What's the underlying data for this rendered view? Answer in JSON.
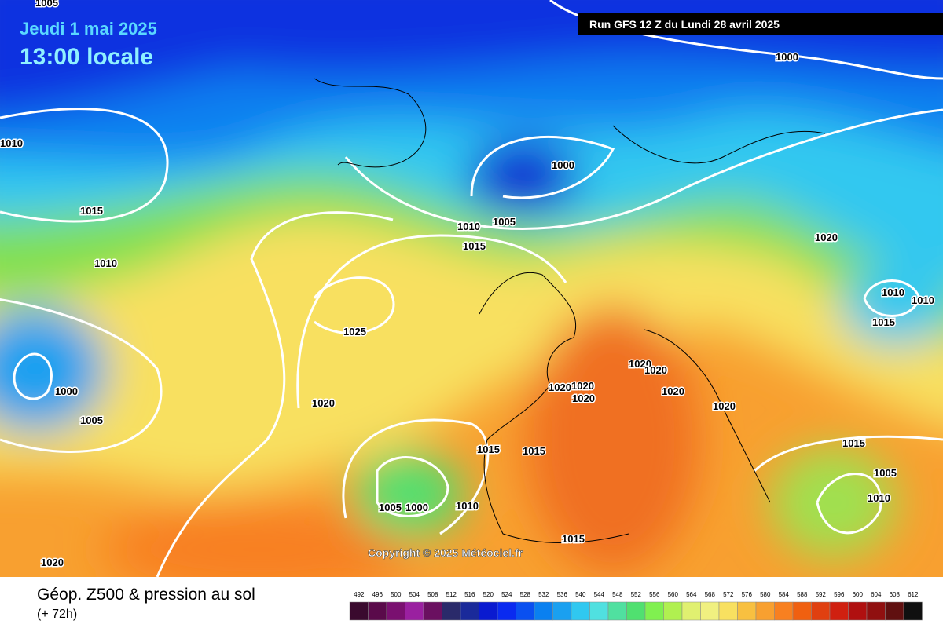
{
  "header": {
    "date": "Jeudi 1 mai 2025",
    "time": "13:00 locale",
    "run": "Run GFS 12 Z du Lundi 28 avril 2025"
  },
  "isobar_labels": [
    "1005",
    "1010",
    "1015",
    "1010",
    "1000",
    "1005",
    "1010",
    "1015",
    "1000",
    "1020",
    "1010",
    "1010",
    "1015",
    "1025",
    "1000",
    "1005",
    "1020",
    "1020",
    "1020",
    "1020",
    "1020",
    "1020",
    "1020",
    "1020",
    "1015",
    "1015",
    "1015",
    "1005",
    "1010",
    "1005",
    "1000",
    "1010",
    "1015",
    "1020"
  ],
  "copyright": "Copyright © 2025 Météociel.fr",
  "legend": {
    "title": "Géop. Z500 & pression au sol",
    "subtitle": "(+ 72h)",
    "ticks": [
      492,
      496,
      500,
      504,
      508,
      512,
      516,
      520,
      524,
      528,
      532,
      536,
      540,
      544,
      548,
      552,
      556,
      560,
      564,
      568,
      572,
      576,
      580,
      584,
      588,
      592,
      596,
      600,
      604,
      608,
      612
    ],
    "colors": [
      "#3a0a2e",
      "#5a0a4a",
      "#7a1070",
      "#9a20a0",
      "#6a1060",
      "#2a2a6a",
      "#1a2a9a",
      "#0a1ad0",
      "#0a2af0",
      "#0a50f0",
      "#0a80f0",
      "#1aa0f0",
      "#30c8f0",
      "#50e0e0",
      "#50e0a0",
      "#50e070",
      "#80f050",
      "#b0f050",
      "#e0f070",
      "#f0f080",
      "#f8e060",
      "#f8c040",
      "#f8a030",
      "#f88020",
      "#f06010",
      "#e04010",
      "#d02010",
      "#b01010",
      "#901010",
      "#601010",
      "#101010"
    ]
  }
}
